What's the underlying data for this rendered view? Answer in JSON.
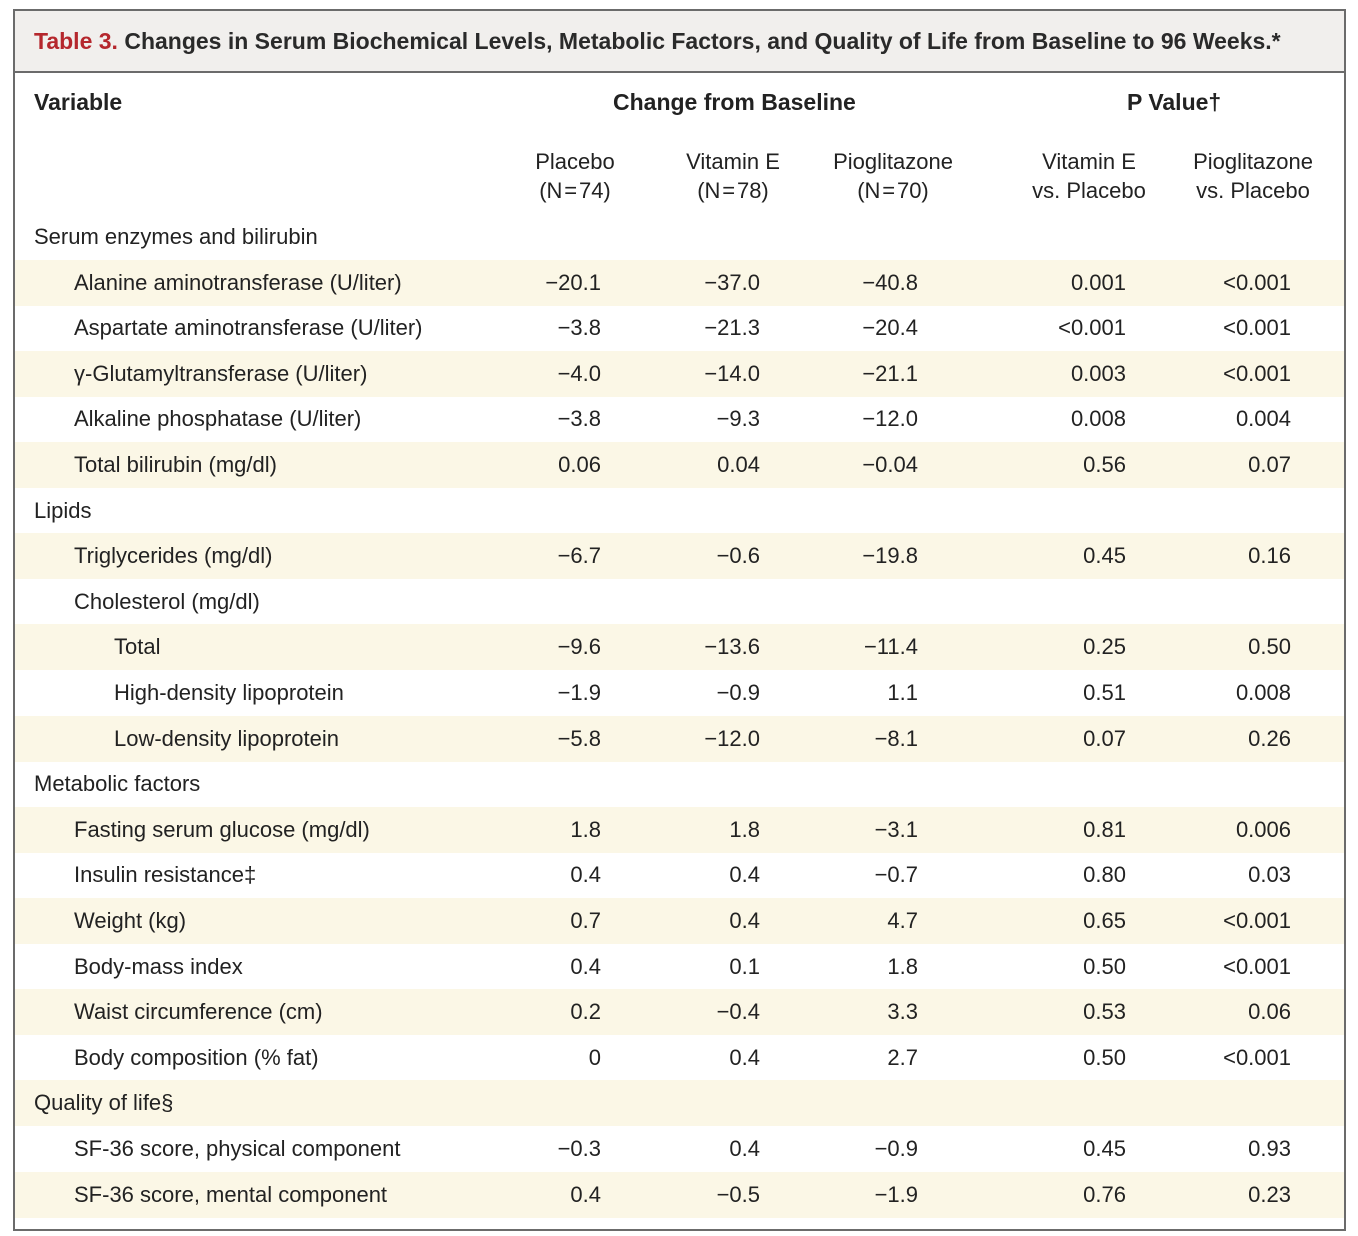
{
  "title": {
    "label": "Table 3.",
    "text": "Changes in Serum Biochemical Levels, Metabolic Factors, and Quality of Life from Baseline to 96 Weeks.*"
  },
  "header": {
    "variable": "Variable",
    "change": "Change from Baseline",
    "pvalue": "P Value†",
    "cols": [
      {
        "l1": "Placebo",
        "l2": "(N = 74)"
      },
      {
        "l1": "Vitamin E",
        "l2": "(N = 78)"
      },
      {
        "l1": "Pioglitazone",
        "l2": "(N = 70)"
      },
      {
        "l1": "Vitamin E",
        "l2": "vs. Placebo"
      },
      {
        "l1": "Pioglitazone",
        "l2": "vs. Placebo"
      }
    ]
  },
  "rows": [
    {
      "label": "Serum enzymes and bilirubin",
      "level": 0,
      "vals": []
    },
    {
      "label": "Alanine aminotransferase (U/liter)",
      "level": 1,
      "vals": [
        "−20.1",
        "−37.0",
        "−40.8",
        "0.001",
        "<0.001"
      ]
    },
    {
      "label": "Aspartate aminotransferase (U/liter)",
      "level": 1,
      "vals": [
        "−3.8",
        "−21.3",
        "−20.4",
        "<0.001",
        "<0.001"
      ]
    },
    {
      "label": "γ-Glutamyltransferase (U/liter)",
      "level": 1,
      "vals": [
        "−4.0",
        "−14.0",
        "−21.1",
        "0.003",
        "<0.001"
      ]
    },
    {
      "label": "Alkaline phosphatase (U/liter)",
      "level": 1,
      "vals": [
        "−3.8",
        "−9.3",
        "−12.0",
        "0.008",
        "0.004"
      ]
    },
    {
      "label": "Total bilirubin (mg/dl)",
      "level": 1,
      "vals": [
        "0.06",
        "0.04",
        "−0.04",
        "0.56",
        "0.07"
      ]
    },
    {
      "label": "Lipids",
      "level": 0,
      "vals": []
    },
    {
      "label": "Triglycerides (mg/dl)",
      "level": 1,
      "vals": [
        "−6.7",
        "−0.6",
        "−19.8",
        "0.45",
        "0.16"
      ]
    },
    {
      "label": "Cholesterol (mg/dl)",
      "level": 1,
      "vals": []
    },
    {
      "label": "Total",
      "level": 2,
      "vals": [
        "−9.6",
        "−13.6",
        "−11.4",
        "0.25",
        "0.50"
      ]
    },
    {
      "label": "High-density lipoprotein",
      "level": 2,
      "vals": [
        "−1.9",
        "−0.9",
        "1.1",
        "0.51",
        "0.008"
      ]
    },
    {
      "label": "Low-density lipoprotein",
      "level": 2,
      "vals": [
        "−5.8",
        "−12.0",
        "−8.1",
        "0.07",
        "0.26"
      ]
    },
    {
      "label": "Metabolic factors",
      "level": 0,
      "vals": []
    },
    {
      "label": "Fasting serum glucose (mg/dl)",
      "level": 1,
      "vals": [
        "1.8",
        "1.8",
        "−3.1",
        "0.81",
        "0.006"
      ]
    },
    {
      "label": "Insulin resistance‡",
      "level": 1,
      "vals": [
        "0.4",
        "0.4",
        "−0.7",
        "0.80",
        "0.03"
      ]
    },
    {
      "label": "Weight (kg)",
      "level": 1,
      "vals": [
        "0.7",
        "0.4",
        "4.7",
        "0.65",
        "<0.001"
      ]
    },
    {
      "label": "Body-mass index",
      "level": 1,
      "vals": [
        "0.4",
        "0.1",
        "1.8",
        "0.50",
        "<0.001"
      ]
    },
    {
      "label": "Waist circumference (cm)",
      "level": 1,
      "vals": [
        "0.2",
        "−0.4",
        "3.3",
        "0.53",
        "0.06"
      ]
    },
    {
      "label": "Body composition (% fat)",
      "level": 1,
      "vals": [
        "0",
        "0.4",
        "2.7",
        "0.50",
        "<0.001"
      ]
    },
    {
      "label": "Quality of life§",
      "level": 0,
      "vals": []
    },
    {
      "label": "SF-36 score, physical component",
      "level": 1,
      "vals": [
        "−0.3",
        "0.4",
        "−0.9",
        "0.45",
        "0.93"
      ]
    },
    {
      "label": "SF-36 score, mental component",
      "level": 1,
      "vals": [
        "0.4",
        "−0.5",
        "−1.9",
        "0.76",
        "0.23"
      ]
    }
  ]
}
